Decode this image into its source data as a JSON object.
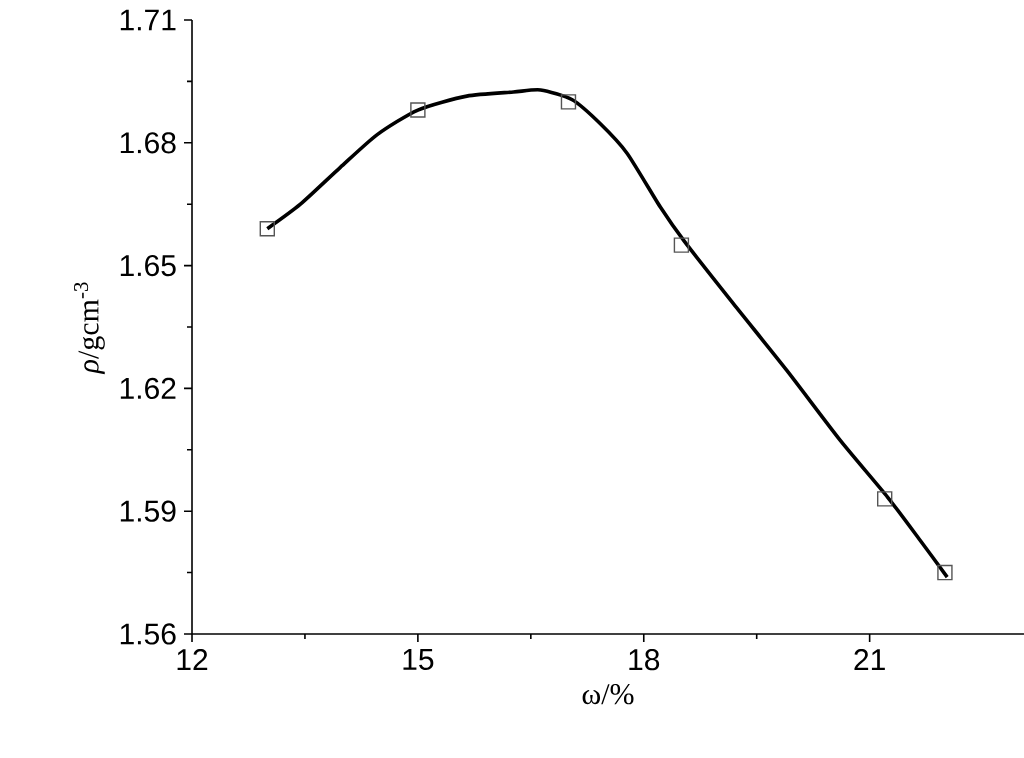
{
  "chart_data": {
    "type": "scatter",
    "xlabel": "ω/%",
    "ylabel": "*ρ*/gcm$^{-3}$",
    "xlim": [
      12,
      23.05
    ],
    "xticks": [
      12,
      15,
      18,
      21
    ],
    "ylim": [
      1.56,
      1.71
    ],
    "yticks": [
      1.56,
      1.59,
      1.62,
      1.65,
      1.68,
      1.71
    ],
    "series": [
      {
        "marker": "square",
        "color": "#555555",
        "x": [
          13,
          15,
          17,
          18.5,
          21.2,
          22
        ],
        "values": [
          1.659,
          1.688,
          1.69,
          1.655,
          1.593,
          1.575
        ]
      },
      {
        "type": "line",
        "color": "#000000",
        "marker": "none",
        "line_style": "solid",
        "x": [
          13.0,
          13.44,
          13.97,
          14.46,
          15.0,
          15.65,
          16.27,
          16.63,
          17.05,
          17.42,
          17.78,
          18.22,
          18.54,
          19.19,
          19.9,
          20.61,
          21.24,
          21.67,
          22.03
        ],
        "values": [
          1.659,
          1.665,
          1.674,
          1.682,
          1.688,
          1.6914,
          1.6924,
          1.6929,
          1.6905,
          1.6847,
          1.6774,
          1.6643,
          1.6559,
          1.6407,
          1.6244,
          1.6073,
          1.5934,
          1.5829,
          1.5739
        ]
      }
    ]
  }
}
